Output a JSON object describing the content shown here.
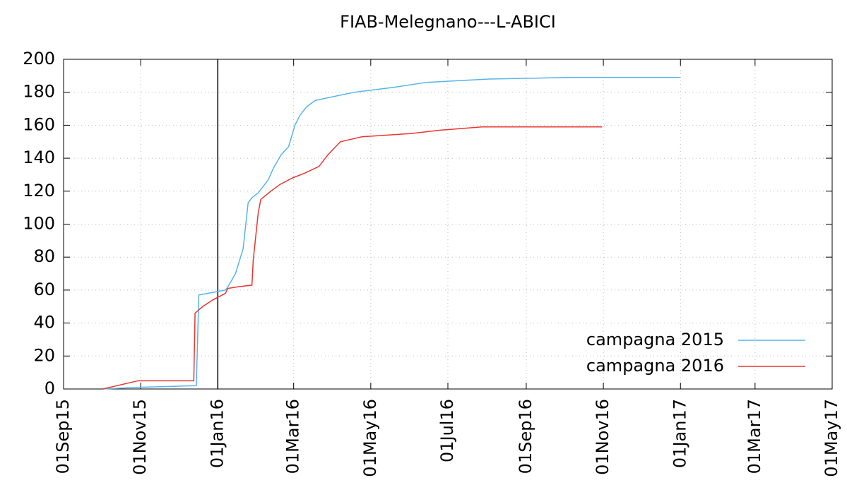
{
  "chart_data": {
    "type": "line",
    "title": "FIAB-Melegnano---L-ABICI",
    "xlim": [
      "2015-09-01",
      "2017-05-01"
    ],
    "xticks": [
      {
        "value": "2015-09-01",
        "label": "01Sep15"
      },
      {
        "value": "2015-11-01",
        "label": "01Nov15"
      },
      {
        "value": "2016-01-01",
        "label": "01Jan16"
      },
      {
        "value": "2016-03-01",
        "label": "01Mar16"
      },
      {
        "value": "2016-05-01",
        "label": "01May16"
      },
      {
        "value": "2016-07-01",
        "label": "01Jul16"
      },
      {
        "value": "2016-09-01",
        "label": "01Sep16"
      },
      {
        "value": "2016-11-01",
        "label": "01Nov16"
      },
      {
        "value": "2017-01-01",
        "label": "01Jan17"
      },
      {
        "value": "2017-03-01",
        "label": "01Mar17"
      },
      {
        "value": "2017-05-01",
        "label": "01May17"
      }
    ],
    "ylim": [
      0,
      200
    ],
    "yticks": [
      0,
      20,
      40,
      60,
      80,
      100,
      120,
      140,
      160,
      180,
      200
    ],
    "grid": true,
    "legend": "lower right",
    "vlines": [
      "2016-01-01"
    ],
    "series": [
      {
        "name": "campagna 2015",
        "color": "#56b4e9",
        "x": [
          "2015-10-02",
          "2015-10-30",
          "2015-12-15",
          "2015-12-17",
          "2016-01-07",
          "2016-01-09",
          "2016-01-15",
          "2016-01-21",
          "2016-01-25",
          "2016-01-28",
          "2016-02-02",
          "2016-02-06",
          "2016-02-10",
          "2016-02-14",
          "2016-02-20",
          "2016-02-26",
          "2016-03-02",
          "2016-03-06",
          "2016-03-11",
          "2016-03-18",
          "2016-03-30",
          "2016-04-18",
          "2016-05-19",
          "2016-06-14",
          "2016-08-02",
          "2016-10-07",
          "2017-01-01"
        ],
        "values": [
          0,
          1,
          2,
          57,
          60,
          62,
          70,
          85,
          113,
          116,
          119,
          123,
          127,
          134,
          142,
          147,
          160,
          166,
          171,
          175,
          177,
          180,
          183,
          186,
          188,
          189,
          189
        ]
      },
      {
        "name": "campagna 2016",
        "color": "#e8362f",
        "x": [
          "2015-10-02",
          "2015-10-30",
          "2015-12-13",
          "2015-12-14",
          "2015-12-20",
          "2015-12-28",
          "2016-01-07",
          "2016-01-09",
          "2016-01-17",
          "2016-01-28",
          "2016-01-29",
          "2016-02-02",
          "2016-02-04",
          "2016-02-12",
          "2016-02-19",
          "2016-02-29",
          "2016-03-10",
          "2016-03-21",
          "2016-03-28",
          "2016-04-07",
          "2016-04-24",
          "2016-06-02",
          "2016-06-25",
          "2016-07-28",
          "2016-10-31"
        ],
        "values": [
          0,
          5,
          5,
          46,
          50,
          54,
          58,
          61,
          62,
          63,
          78,
          107,
          115,
          120,
          124,
          128,
          131,
          135,
          142,
          150,
          153,
          155,
          157,
          159,
          159
        ]
      }
    ]
  }
}
